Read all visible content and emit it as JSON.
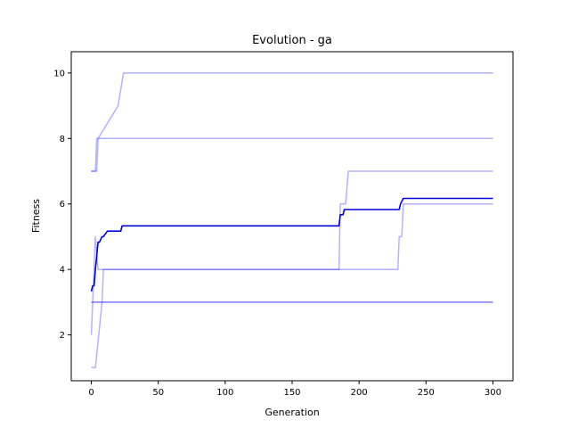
{
  "chart_data": {
    "type": "line",
    "title": "Evolution - ga",
    "xlabel": "Generation",
    "ylabel": "Fitness",
    "xlim": [
      -15,
      315
    ],
    "ylim": [
      0.6,
      10.65
    ],
    "xticks": [
      0,
      50,
      100,
      150,
      200,
      250,
      300
    ],
    "yticks": [
      2,
      4,
      6,
      8,
      10
    ],
    "grid": false,
    "legend": "none",
    "colors": {
      "individual": "#b3b3ff",
      "mean": "#0000dd"
    },
    "series": [
      {
        "role": "individual",
        "x": [
          0,
          3,
          4,
          5,
          20,
          24,
          300
        ],
        "y": [
          7,
          7,
          8,
          8,
          9,
          10,
          10
        ]
      },
      {
        "role": "individual",
        "x": [
          0,
          4,
          5,
          300
        ],
        "y": [
          7,
          7,
          8,
          8
        ]
      },
      {
        "role": "individual",
        "x": [
          0,
          2,
          3,
          5,
          185,
          186,
          190,
          192,
          300
        ],
        "y": [
          2,
          4,
          5,
          4,
          4,
          6,
          6,
          7,
          7
        ]
      },
      {
        "role": "individual",
        "x": [
          0,
          3,
          8,
          9,
          229,
          230,
          232,
          233,
          300
        ],
        "y": [
          1,
          1,
          3,
          4,
          4,
          5,
          5,
          6,
          6
        ]
      },
      {
        "role": "individual",
        "x": [
          0,
          300
        ],
        "y": [
          3,
          3
        ]
      },
      {
        "role": "individual",
        "x": [
          0,
          300
        ],
        "y": [
          3,
          3
        ]
      },
      {
        "role": "mean",
        "x": [
          0,
          1,
          2,
          3,
          5,
          6,
          8,
          9,
          12,
          13,
          22,
          23,
          185,
          186,
          188,
          189,
          191,
          192,
          230,
          231,
          233,
          300
        ],
        "y": [
          3.33,
          3.5,
          3.5,
          4.0,
          4.83,
          4.83,
          5.0,
          5.0,
          5.17,
          5.17,
          5.17,
          5.33,
          5.33,
          5.67,
          5.67,
          5.83,
          5.83,
          5.83,
          5.83,
          6.0,
          6.17,
          6.17
        ]
      }
    ]
  }
}
